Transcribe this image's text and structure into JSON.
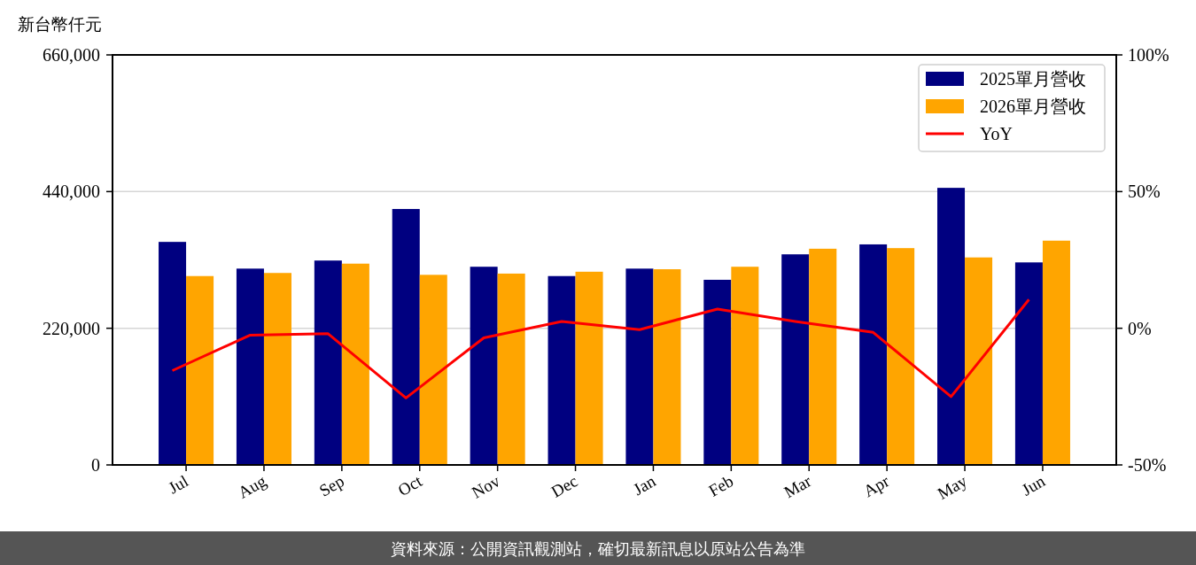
{
  "chart_data": {
    "type": "bar",
    "ylabel": "新台幣仟元",
    "categories": [
      "Jul",
      "Aug",
      "Sep",
      "Oct",
      "Nov",
      "Dec",
      "Jan",
      "Feb",
      "Mar",
      "Apr",
      "May",
      "Jun"
    ],
    "series": [
      {
        "name": "2025單月營收",
        "color": "#000080",
        "values": [
          359000,
          316000,
          329000,
          412000,
          319000,
          304000,
          316000,
          298000,
          339000,
          355000,
          446000,
          326000
        ]
      },
      {
        "name": "2026單月營收",
        "color": "#ffa500",
        "values": [
          304000,
          309000,
          324000,
          306000,
          308000,
          311000,
          315000,
          319000,
          348000,
          349000,
          334000,
          361000
        ]
      },
      {
        "name": "YoY",
        "type": "line",
        "axis": "y2",
        "color": "#ff0000",
        "values": [
          -15.5,
          -2.5,
          -2,
          -25.5,
          -3.5,
          2.5,
          -0.5,
          7,
          2.5,
          -1.5,
          -25,
          10.5
        ]
      }
    ],
    "ylim": [
      0,
      660000
    ],
    "yticks": [
      0,
      {
        "value": 220000,
        "label": "220,000"
      },
      {
        "value": 440000,
        "label": "440,000"
      },
      {
        "value": 660000,
        "label": "660,000"
      }
    ],
    "y2lim": [
      -50,
      100
    ],
    "y2ticks": [
      {
        "value": -50,
        "label": "-50%"
      },
      {
        "value": 0,
        "label": "0%"
      },
      {
        "value": 50,
        "label": "50%"
      },
      {
        "value": 100,
        "label": "100%"
      }
    ],
    "grid": "y",
    "legend": "top right",
    "annotations": [
      "資料來源：公開資訊觀測站，確切最新訊息以原站公告為準"
    ]
  }
}
